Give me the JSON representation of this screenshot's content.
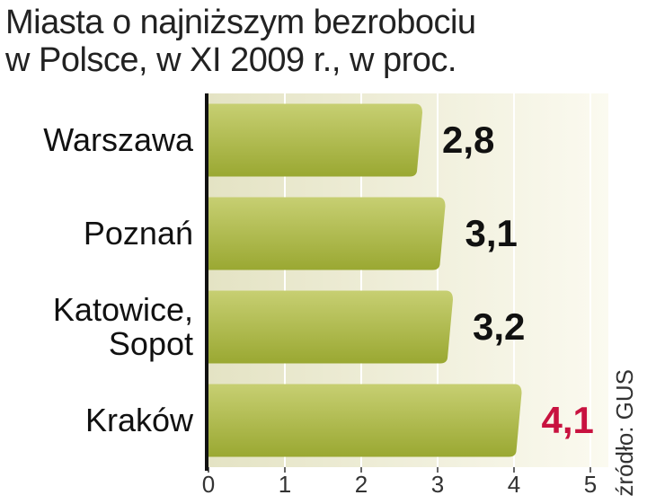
{
  "chart_data": {
    "type": "bar",
    "orientation": "horizontal",
    "title": "Miasta o najniższym bezrobociu\nw Polsce, w XI 2009 r., w proc.",
    "categories": [
      "Warszawa",
      "Poznań",
      "Katowice,\nSopot",
      "Kraków"
    ],
    "values": [
      2.8,
      3.1,
      3.2,
      4.1
    ],
    "value_labels": [
      "2,8",
      "3,1",
      "3,2",
      "4,1"
    ],
    "value_label_colors": [
      "#111111",
      "#111111",
      "#111111",
      "#c8123f"
    ],
    "color": "#aab545",
    "xlim": [
      0,
      5
    ],
    "xticks": [
      0,
      1,
      2,
      3,
      4,
      5
    ],
    "grid": true,
    "source": "źródło: GUS"
  }
}
